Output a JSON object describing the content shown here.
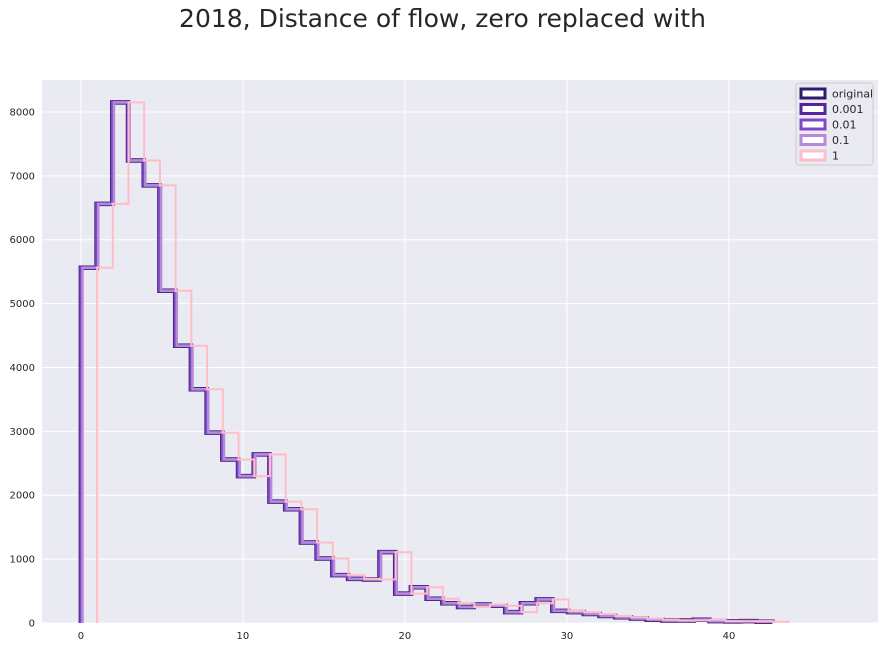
{
  "chart_data": {
    "type": "histogram",
    "title": "2018, Distance of flow, zero replaced with",
    "xlabel": "",
    "ylabel": "",
    "xlim": [
      -2.4,
      49.2
    ],
    "ylim": [
      0,
      8500
    ],
    "x_ticks": [
      0,
      10,
      20,
      30,
      40
    ],
    "y_ticks": [
      0,
      1000,
      2000,
      3000,
      4000,
      5000,
      6000,
      7000,
      8000
    ],
    "grid": true,
    "legend_position": "top-right",
    "bin_width": 0.97,
    "counts": [
      5560,
      6560,
      8150,
      7240,
      6850,
      5200,
      4340,
      3660,
      2980,
      2560,
      2300,
      2640,
      1900,
      1780,
      1260,
      1010,
      750,
      690,
      680,
      1110,
      460,
      560,
      380,
      310,
      250,
      290,
      270,
      170,
      310,
      370,
      190,
      170,
      140,
      110,
      90,
      70,
      50,
      40,
      40,
      50,
      30,
      25,
      30,
      20
    ],
    "series": [
      {
        "name": "original",
        "offset": 0.0,
        "color": "#2e1a6e",
        "line_width": 4.5
      },
      {
        "name": "0.001",
        "offset": 0.001,
        "color": "#55249b",
        "line_width": 3.5
      },
      {
        "name": "0.01",
        "offset": 0.01,
        "color": "#8347c5",
        "line_width": 3.0
      },
      {
        "name": "0.1",
        "offset": 0.1,
        "color": "#b48ad9",
        "line_width": 2.5
      },
      {
        "name": "1",
        "offset": 1.0,
        "color": "#ffbcc9",
        "line_width": 2.0
      }
    ]
  }
}
